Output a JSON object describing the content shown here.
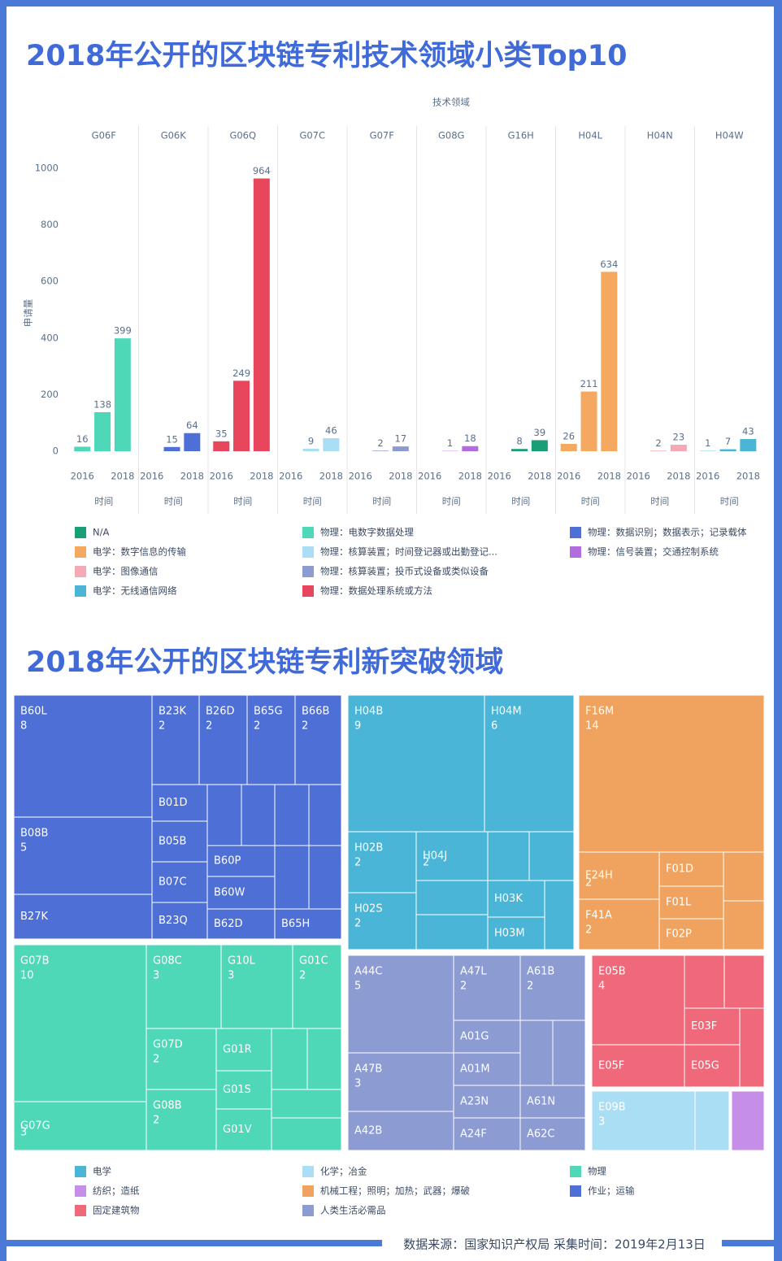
{
  "footer": "数据来源：国家知识产权局  采集时间：2019年2月13日",
  "chart_data": [
    {
      "type": "bar",
      "title": "2018年公开的区块链专利技术领域小类Top10",
      "facet_label": "技术领域",
      "y_label": "申请量",
      "x_label": "时间",
      "categories": [
        "2016",
        null,
        "2018"
      ],
      "ylim": [
        0,
        1000
      ],
      "yticks": [
        0,
        200,
        400,
        600,
        800,
        1000
      ],
      "facets": [
        {
          "name": "G06F",
          "color": "#4fd8b8",
          "values": [
            16,
            138,
            399
          ]
        },
        {
          "name": "G06K",
          "color": "#4d6fd6",
          "values": [
            null,
            15,
            64
          ]
        },
        {
          "name": "G06Q",
          "color": "#e8465c",
          "values": [
            35,
            249,
            964
          ]
        },
        {
          "name": "G07C",
          "color": "#a9def5",
          "values": [
            null,
            9,
            46
          ]
        },
        {
          "name": "G07F",
          "color": "#8d9bd3",
          "values": [
            null,
            2,
            17
          ]
        },
        {
          "name": "G08G",
          "color": "#b36be0",
          "values": [
            null,
            1,
            18
          ]
        },
        {
          "name": "G16H",
          "color": "#1a9e78",
          "values": [
            null,
            8,
            39
          ]
        },
        {
          "name": "H04L",
          "color": "#f4a860",
          "values": [
            26,
            211,
            634
          ]
        },
        {
          "name": "H04N",
          "color": "#f5a8b5",
          "values": [
            null,
            2,
            23
          ]
        },
        {
          "name": "H04W",
          "color": "#4ab5d6",
          "values": [
            1,
            7,
            43
          ]
        }
      ],
      "legend": [
        {
          "name": "N/A",
          "color": "#1a9e78"
        },
        {
          "name": "电学：数字信息的传输",
          "color": "#f4a860"
        },
        {
          "name": "电学：图像通信",
          "color": "#f5a8b5"
        },
        {
          "name": "电学：无线通信网络",
          "color": "#4ab5d6"
        },
        {
          "name": "物理：电数字数据处理",
          "color": "#4fd8b8"
        },
        {
          "name": "物理：核算装置；时间登记器或出勤登记...",
          "color": "#a9def5"
        },
        {
          "name": "物理：核算装置；投币式设备或类似设备",
          "color": "#8d9bd3"
        },
        {
          "name": "物理：数据处理系统或方法",
          "color": "#e8465c"
        },
        {
          "name": "物理：数据识别；数据表示；记录载体",
          "color": "#4d6fd6"
        },
        {
          "name": "物理：信号装置；交通控制系统",
          "color": "#b36be0"
        }
      ]
    },
    {
      "type": "treemap",
      "title": "2018年公开的区块链专利新突破领域",
      "groups": [
        {
          "name": "电学",
          "color": "#4ab5d6",
          "children": [
            {
              "label": "H04B",
              "value": 9,
              "value_label": "9"
            },
            {
              "label": "H04M",
              "value": 6,
              "value_label": "6"
            },
            {
              "label": "H02B",
              "value": 2,
              "value_label": "2"
            },
            {
              "label": "H04J",
              "value": 2,
              "value_label": "2"
            },
            {
              "label": null,
              "value": 1
            },
            {
              "label": null,
              "value": 1
            },
            {
              "label": "H02S",
              "value": 2,
              "value_label": "2"
            },
            {
              "label": null,
              "value": 1
            },
            {
              "label": null,
              "value": 1
            },
            {
              "label": "H03K",
              "value": 1
            },
            {
              "label": "H03M",
              "value": 1
            },
            {
              "label": null,
              "value": 1
            }
          ]
        },
        {
          "name": "纺织；造纸",
          "color": "#c58ee8",
          "children": [
            {
              "label": null,
              "value": 1
            }
          ]
        },
        {
          "name": "固定建筑物",
          "color": "#f0697a",
          "children": [
            {
              "label": "E05B",
              "value": 4,
              "value_label": "4"
            },
            {
              "label": "E05F",
              "value": 2
            },
            {
              "label": null,
              "value": 1
            },
            {
              "label": null,
              "value": 1
            },
            {
              "label": "E03F",
              "value": 1
            },
            {
              "label": "E05G",
              "value": 1
            },
            {
              "label": null,
              "value": 1
            }
          ]
        },
        {
          "name": "化学；冶金",
          "color": "#a9def5",
          "children": [
            {
              "label": "E09B",
              "value": 3,
              "value_label": "3"
            },
            {
              "label": null,
              "value": 1
            }
          ]
        },
        {
          "name": "机械工程；照明；加热；武器；爆破",
          "color": "#f0a35e",
          "children": [
            {
              "label": "F16M",
              "value": 14,
              "value_label": "14"
            },
            {
              "label": "F24H",
              "value": 2,
              "value_label": "2"
            },
            {
              "label": "F41A",
              "value": 2,
              "value_label": "2"
            },
            {
              "label": "F01D",
              "value": 1
            },
            {
              "label": "F01L",
              "value": 1
            },
            {
              "label": "F02P",
              "value": 1
            },
            {
              "label": null,
              "value": 1
            },
            {
              "label": null,
              "value": 1
            }
          ]
        },
        {
          "name": "人类生活必需品",
          "color": "#8d9bd3",
          "children": [
            {
              "label": "A44C",
              "value": 5,
              "value_label": "5"
            },
            {
              "label": "A47B",
              "value": 3,
              "value_label": "3"
            },
            {
              "label": "A42B",
              "value": 2
            },
            {
              "label": "A47L",
              "value": 2,
              "value_label": "2"
            },
            {
              "label": "A61B",
              "value": 2,
              "value_label": "2"
            },
            {
              "label": "A01G",
              "value": 1
            },
            {
              "label": "A01M",
              "value": 1
            },
            {
              "label": "A23N",
              "value": 1
            },
            {
              "label": "A24F",
              "value": 1
            },
            {
              "label": null,
              "value": 1
            },
            {
              "label": null,
              "value": 1
            },
            {
              "label": "A61N",
              "value": 1
            },
            {
              "label": "A62C",
              "value": 1
            }
          ]
        },
        {
          "name": "物理",
          "color": "#4fd8b8",
          "children": [
            {
              "label": "G07B",
              "value": 10,
              "value_label": "10"
            },
            {
              "label": "G07G",
              "value": 3,
              "value_label": "3"
            },
            {
              "label": "G08C",
              "value": 3,
              "value_label": "3"
            },
            {
              "label": "G10L",
              "value": 3,
              "value_label": "3"
            },
            {
              "label": "G01C",
              "value": 2,
              "value_label": "2"
            },
            {
              "label": "G07D",
              "value": 2,
              "value_label": "2"
            },
            {
              "label": "G08B",
              "value": 2,
              "value_label": "2"
            },
            {
              "label": "G01R",
              "value": 1
            },
            {
              "label": "G01S",
              "value": 1
            },
            {
              "label": "G01V",
              "value": 1
            },
            {
              "label": null,
              "value": 1
            },
            {
              "label": null,
              "value": 1
            },
            {
              "label": null,
              "value": 1
            },
            {
              "label": null,
              "value": 1
            }
          ]
        },
        {
          "name": "作业；运输",
          "color": "#4d6fd6",
          "children": [
            {
              "label": "B60L",
              "value": 8,
              "value_label": "8"
            },
            {
              "label": "B23K",
              "value": 2,
              "value_label": "2"
            },
            {
              "label": "B26D",
              "value": 2,
              "value_label": "2"
            },
            {
              "label": "B65G",
              "value": 2,
              "value_label": "2"
            },
            {
              "label": "B66B",
              "value": 2,
              "value_label": "2"
            },
            {
              "label": "B08B",
              "value": 5,
              "value_label": "5"
            },
            {
              "label": "B27K",
              "value": 3
            },
            {
              "label": "B01D",
              "value": 1
            },
            {
              "label": "B05B",
              "value": 1
            },
            {
              "label": "B07C",
              "value": 1
            },
            {
              "label": "B23Q",
              "value": 1
            },
            {
              "label": null,
              "value": 1
            },
            {
              "label": null,
              "value": 1
            },
            {
              "label": null,
              "value": 1
            },
            {
              "label": null,
              "value": 1
            },
            {
              "label": "B60P",
              "value": 1
            },
            {
              "label": "B60W",
              "value": 1
            },
            {
              "label": "B62D",
              "value": 1
            },
            {
              "label": null,
              "value": 1
            },
            {
              "label": null,
              "value": 1
            },
            {
              "label": "B65H",
              "value": 1
            }
          ]
        }
      ]
    }
  ]
}
